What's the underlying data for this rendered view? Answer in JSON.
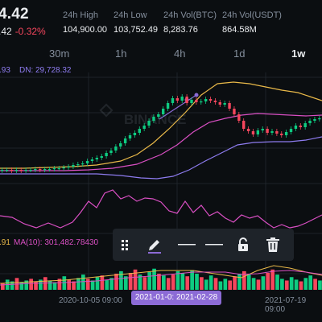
{
  "header": {
    "last_price": "4.42",
    "last_price_secondary": ".42",
    "change_pct": "-0.32%",
    "stats": [
      {
        "label": "24h High",
        "value": "104,900.00"
      },
      {
        "label": "24h Low",
        "value": "103,752.49"
      },
      {
        "label": "24h Vol(BTC)",
        "value": "8,283.76"
      },
      {
        "label": "24h Vol(USDT)",
        "value": "864.58M"
      }
    ]
  },
  "timeframes": [
    "30m",
    "1h",
    "4h",
    "1d",
    "1w"
  ],
  "active_timeframe": "1w",
  "indicators": {
    "boll_up_fragment": ".93",
    "boll_dn": "DN: 29,728.32",
    "ma_fragment": ".91",
    "ma10": "MA(10): 301,482.78430"
  },
  "watermark": "BINANCE",
  "toolbar": {
    "tools": [
      "drag-handle-icon",
      "pencil-icon",
      "line-icon",
      "line-icon",
      "unlock-icon",
      "trash-icon"
    ]
  },
  "x_axis": {
    "left_date": "2020-10-05 09:00",
    "range": "2021-01-0:  2021-02-28",
    "right_date": "2021-07-19 09:00"
  },
  "colors": {
    "up": "#0ecb81",
    "down": "#f6465d",
    "boll_upper": "#e9b949",
    "boll_mid": "#d94fc3",
    "boll_lower": "#8e7cf0",
    "accent": "#8c6bd6"
  }
}
